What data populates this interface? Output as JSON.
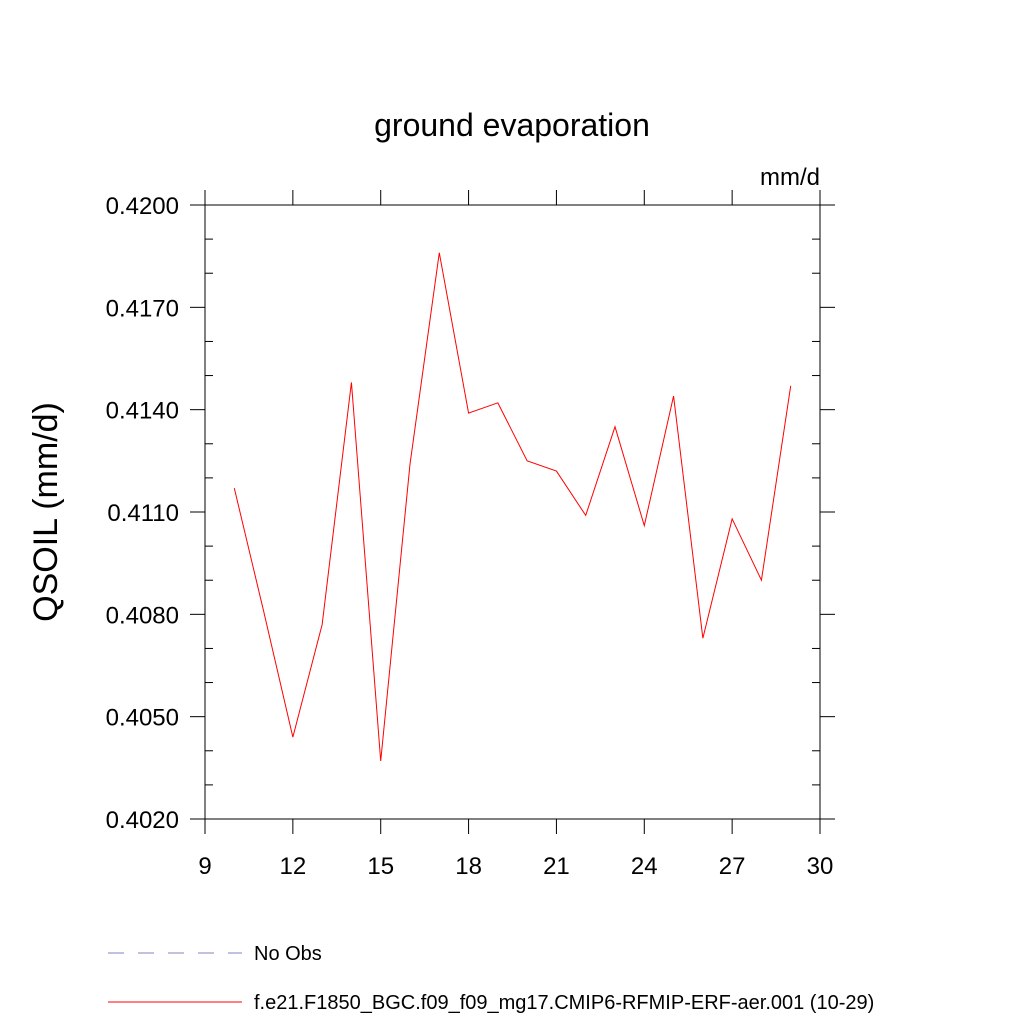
{
  "chart_data": {
    "type": "line",
    "title": "ground evaporation",
    "units_label": "mm/d",
    "ylabel": "QSOIL  (mm/d)",
    "xlabel": "",
    "xlim": [
      9,
      30
    ],
    "ylim": [
      0.402,
      0.42
    ],
    "x_ticks": [
      9,
      12,
      15,
      18,
      21,
      24,
      27,
      30
    ],
    "x_tick_labels": [
      "9",
      "12",
      "15",
      "18",
      "21",
      "24",
      "27",
      "30"
    ],
    "y_ticks": [
      0.402,
      0.405,
      0.408,
      0.411,
      0.414,
      0.417,
      0.42
    ],
    "y_tick_labels": [
      "0.4020",
      "0.4050",
      "0.4080",
      "0.4110",
      "0.4140",
      "0.4170",
      "0.4200"
    ],
    "grid": false,
    "legend_placement": "bottom",
    "series": [
      {
        "name": "f.e21.F1850_BGC.f09_f09_mg17.CMIP6-RFMIP-ERF-aer.001 (10-29)",
        "color": "#ff0000",
        "x": [
          10,
          11,
          12,
          13,
          14,
          15,
          16,
          17,
          18,
          19,
          20,
          21,
          22,
          23,
          24,
          25,
          26,
          27,
          28,
          29
        ],
        "values": [
          0.4117,
          0.4081,
          0.4044,
          0.4077,
          0.4148,
          0.4037,
          0.4124,
          0.4186,
          0.4139,
          0.4142,
          0.4125,
          0.4122,
          0.4109,
          0.4135,
          0.4106,
          0.4144,
          0.4073,
          0.4108,
          0.409,
          0.4147
        ]
      }
    ],
    "legend": [
      {
        "label": "No Obs",
        "style": "dashed",
        "color": "#8080c0"
      },
      {
        "label": "f.e21.F1850_BGC.f09_f09_mg17.CMIP6-RFMIP-ERF-aer.001 (10-29)",
        "style": "solid",
        "color": "#ff0000"
      }
    ]
  }
}
